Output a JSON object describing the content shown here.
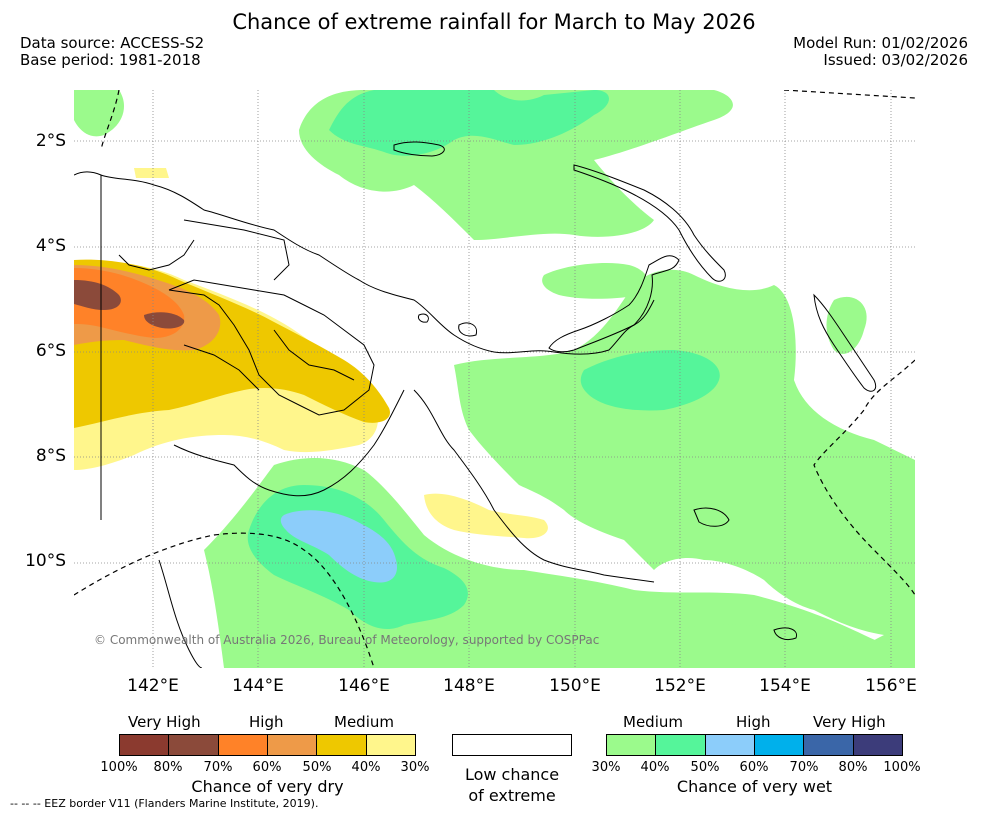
{
  "title": "Chance of extreme rainfall for March to May 2026",
  "meta_left": [
    "Data source: ACCESS-S2",
    "Base period: 1981-2018"
  ],
  "meta_right": [
    "Model Run: 01/02/2026",
    "Issued: 03/02/2026"
  ],
  "lat_labels": [
    "2°S",
    "4°S",
    "6°S",
    "8°S",
    "10°S"
  ],
  "lon_labels": [
    "142°E",
    "144°E",
    "146°E",
    "148°E",
    "150°E",
    "152°E",
    "154°E",
    "156°E"
  ],
  "copyright": "© Commonwealth of Australia 2026, Bureau of Meteorology, supported by COSPPac",
  "legend": {
    "dry": {
      "titles": [
        "Very High",
        "High",
        "Medium"
      ],
      "colors": [
        "#8b3a2f",
        "#8b4a3a",
        "#ff8228",
        "#ee9a48",
        "#eec800",
        "#fff68c"
      ],
      "ticks": [
        "100%",
        "80%",
        "70%",
        "60%",
        "50%",
        "40%",
        "30%"
      ],
      "caption": "Chance of very dry"
    },
    "low": {
      "caption_lines": [
        "Low chance",
        "of extreme"
      ]
    },
    "wet": {
      "titles": [
        "Medium",
        "High",
        "Very High"
      ],
      "colors": [
        "#9bfa8c",
        "#55f59a",
        "#8ccdfa",
        "#00b0eb",
        "#3a66a8",
        "#3c3c7a"
      ],
      "ticks": [
        "30%",
        "40%",
        "50%",
        "60%",
        "70%",
        "80%",
        "100%"
      ],
      "caption": "Chance of very wet"
    }
  },
  "eez_note": "--  --  -- EEZ border V11 (Flanders Marine Institute, 2019)."
}
